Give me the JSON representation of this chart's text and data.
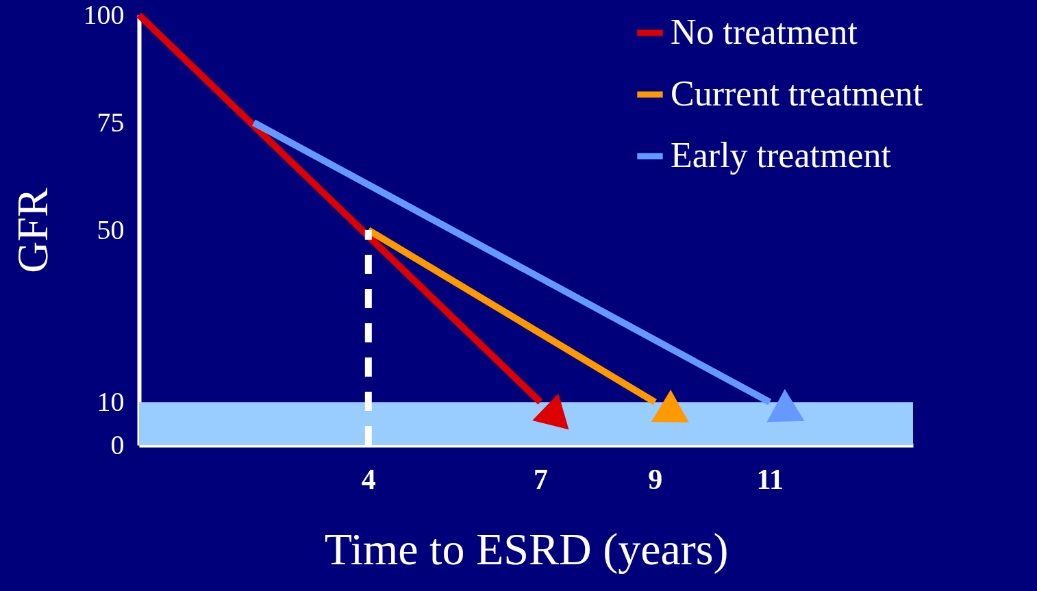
{
  "chart_data": {
    "type": "line",
    "xlabel": "Time to ESRD (years)",
    "ylabel": "GFR",
    "xlim": [
      0,
      13.5
    ],
    "ylim": [
      0,
      100
    ],
    "xticks": [
      4,
      7,
      9,
      11
    ],
    "yticks": [
      0,
      10,
      50,
      75,
      100
    ],
    "grid": false,
    "legend": "top right",
    "marker": "none",
    "series": [
      {
        "name": "No treatment",
        "color": "#dd0000",
        "x": [
          0,
          7
        ],
        "values": [
          100,
          10
        ]
      },
      {
        "name": "Current treatment",
        "color": "#ff9900",
        "x": [
          4,
          9
        ],
        "values": [
          50,
          10
        ]
      },
      {
        "name": "Early treatment",
        "color": "#6699ff",
        "x": [
          2,
          11
        ],
        "values": [
          75,
          10
        ]
      },
      {
        "color": "#ffffff",
        "x": [
          4,
          4
        ],
        "values": [
          0,
          50
        ],
        "line_style": "dashed"
      }
    ],
    "bands": [
      {
        "axis": "y",
        "from": 0,
        "to": 10,
        "color": "#99ccff"
      }
    ]
  }
}
